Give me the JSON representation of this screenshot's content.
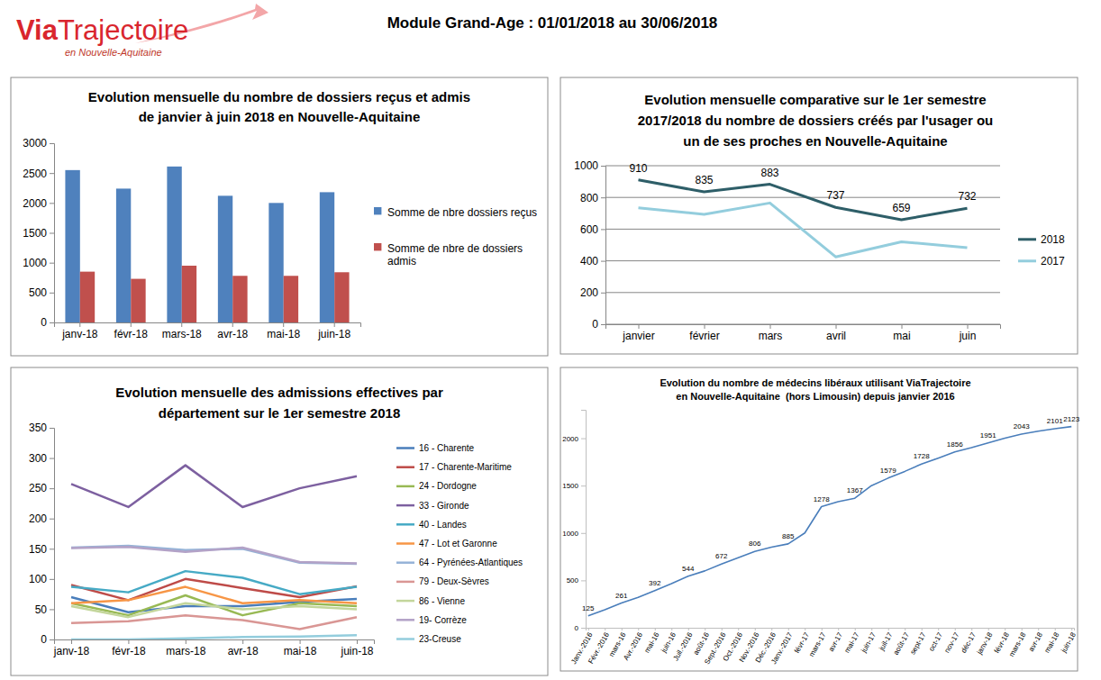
{
  "header": {
    "logo_bold": "Via",
    "logo_light": "Trajectoire",
    "logo_region": "en Nouvelle-Aquitaine",
    "title": "Module Grand-Age : 01/01/2018 au 30/06/2018"
  },
  "chart_data": [
    {
      "type": "bar",
      "title": "Evolution mensuelle du nombre de dossiers reçus et admis\nde janvier à juin 2018 en Nouvelle-Aquitaine",
      "categories": [
        "janv-18",
        "févr-18",
        "mars-18",
        "avr-18",
        "mai-18",
        "juin-18"
      ],
      "series": [
        {
          "name": "Somme de nbre dossiers reçus",
          "color": "#4f81bd",
          "values": [
            2550,
            2240,
            2610,
            2120,
            2000,
            2180
          ]
        },
        {
          "name": "Somme de nbre de dossiers admis",
          "color": "#c0504d",
          "values": [
            850,
            730,
            950,
            780,
            780,
            840
          ]
        }
      ],
      "ylim": [
        0,
        3000
      ],
      "yticks": [
        0,
        500,
        1000,
        1500,
        2000,
        2500,
        3000
      ],
      "grid": false,
      "legend": "right"
    },
    {
      "type": "line",
      "title": "Evolution mensuelle comparative sur le 1er semestre\n2017/2018 du nombre de dossiers créés par l'usager ou\nun de ses proches en Nouvelle-Aquitaine",
      "categories": [
        "janvier",
        "février",
        "mars",
        "avril",
        "mai",
        "juin"
      ],
      "series": [
        {
          "name": "2018",
          "color": "#2e5e68",
          "values": [
            910,
            835,
            883,
            737,
            659,
            732
          ],
          "data_labels": true
        },
        {
          "name": "2017",
          "color": "#93cddd",
          "values": [
            735,
            693,
            765,
            425,
            520,
            483
          ]
        }
      ],
      "ylim": [
        0,
        1000
      ],
      "yticks": [
        0,
        200,
        400,
        600,
        800,
        1000
      ],
      "grid": true,
      "legend": "right"
    },
    {
      "type": "line",
      "title": "Evolution mensuelle des admissions effectives par\ndépartement sur le 1er semestre 2018",
      "categories": [
        "janv-18",
        "févr-18",
        "mars-18",
        "avr-18",
        "mai-18",
        "juin-18"
      ],
      "series": [
        {
          "name": "16 - Charente",
          "color": "#4a7ebb",
          "values": [
            70,
            45,
            55,
            55,
            62,
            67
          ]
        },
        {
          "name": "17 - Charente-Maritime",
          "color": "#be4b48",
          "values": [
            90,
            65,
            100,
            85,
            70,
            88
          ]
        },
        {
          "name": "24 - Dordogne",
          "color": "#98b954",
          "values": [
            60,
            40,
            73,
            40,
            60,
            55
          ]
        },
        {
          "name": "33 - Gironde",
          "color": "#7d60a0",
          "values": [
            257,
            219,
            288,
            219,
            250,
            270
          ]
        },
        {
          "name": "40 - Landes",
          "color": "#46aac5",
          "values": [
            87,
            78,
            113,
            102,
            75,
            87
          ]
        },
        {
          "name": "47 - Lot et Garonne",
          "color": "#f79646",
          "values": [
            60,
            65,
            87,
            60,
            65,
            60
          ]
        },
        {
          "name": "64 - Pyrénées-Atlantiques",
          "color": "#95b3d7",
          "values": [
            152,
            155,
            148,
            150,
            127,
            125
          ]
        },
        {
          "name": "79 - Deux-Sèvres",
          "color": "#d99694",
          "values": [
            27,
            30,
            40,
            32,
            17,
            37
          ]
        },
        {
          "name": "86 - Vienne",
          "color": "#c3d69b",
          "values": [
            55,
            37,
            60,
            50,
            55,
            50
          ]
        },
        {
          "name": "19- Corrèze",
          "color": "#b3a2c7",
          "values": [
            151,
            153,
            145,
            152,
            128,
            126
          ]
        },
        {
          "name": "23-Creuse",
          "color": "#93cddd",
          "values": [
            0,
            0,
            2,
            4,
            5,
            7
          ]
        }
      ],
      "ylim": [
        0,
        350
      ],
      "yticks": [
        0,
        50,
        100,
        150,
        200,
        250,
        300,
        350
      ],
      "grid": false,
      "legend": "right"
    },
    {
      "type": "line",
      "title": "Evolution du nombre de médecins libéraux utilisant ViaTrajectoire\nen Nouvelle-Aquitaine  (hors Limousin) depuis janvier 2016",
      "categories": [
        "Janv.-2016",
        "Févr.-2016",
        "mars-16",
        "Avr.-2016",
        "mai-16",
        "juin-16",
        "Juil.-2016",
        "août-16",
        "Sept.-2016",
        "Oct.-2016",
        "Nov.-2016",
        "Déc.-2016",
        "Janv.-2017",
        "févr-17",
        "mars-17",
        "avr-17",
        "mai-17",
        "juin-17",
        "juil-17",
        "août-17",
        "sept-17",
        "oct-17",
        "nov-17",
        "déc-17",
        "janv-18",
        "févr-18",
        "mars-18",
        "avr-18",
        "mai-18",
        "juin-18"
      ],
      "series": [
        {
          "color": "#4a7ebb",
          "values": [
            125,
            190,
            261,
            320,
            392,
            465,
            544,
            600,
            672,
            740,
            806,
            850,
            885,
            1000,
            1278,
            1330,
            1367,
            1500,
            1579,
            1650,
            1728,
            1790,
            1856,
            1900,
            1951,
            2000,
            2043,
            2075,
            2101,
            2123
          ],
          "value_labels": [
            "125",
            null,
            "261",
            null,
            "392",
            null,
            "544",
            null,
            "672",
            null,
            "806",
            null,
            "885",
            null,
            "1278",
            null,
            "1367",
            null,
            "1579",
            null,
            "1728",
            null,
            "1856",
            null,
            "1951",
            null,
            "2043",
            null,
            "2101",
            "2123"
          ]
        }
      ],
      "ylim": [
        0,
        2300
      ],
      "yticks": [
        0,
        500,
        1000,
        1500,
        2000
      ],
      "grid": false
    }
  ]
}
